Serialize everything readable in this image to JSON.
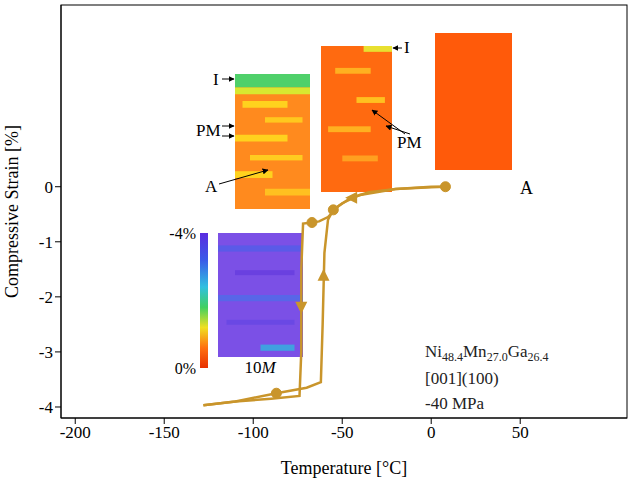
{
  "chart_data": {
    "type": "line",
    "x_label": "Temperature [°C]",
    "y_label": "Compressive Strain [%]",
    "xlim": [
      -208,
      110
    ],
    "xticks": [
      -200,
      -150,
      -100,
      -50,
      0,
      50
    ],
    "ylim": [
      -4.2,
      3.3
    ],
    "yticks": [
      -4,
      -3,
      -2,
      -1,
      0
    ],
    "color": "#c9952b",
    "series": [
      {
        "x": [
          8,
          0,
          -20,
          -35,
          -45,
          -52,
          -58,
          -63,
          -67,
          -72,
          -73,
          -73,
          -74,
          -90,
          -110,
          -128
        ],
        "values": [
          0,
          -0.01,
          -0.04,
          -0.1,
          -0.2,
          -0.35,
          -0.55,
          -0.63,
          -0.65,
          -0.67,
          -1.5,
          -3,
          -3.8,
          -3.85,
          -3.9,
          -3.97
        ]
      },
      {
        "x": [
          -128,
          -110,
          -87,
          -70,
          -62,
          -61,
          -60,
          -58,
          -55,
          -50,
          -40,
          -20,
          0,
          8
        ],
        "values": [
          -3.97,
          -3.9,
          -3.75,
          -3.65,
          -3.55,
          -2.5,
          -1.2,
          -0.6,
          -0.42,
          -0.3,
          -0.15,
          -0.04,
          0,
          0
        ]
      }
    ],
    "points": {
      "x": [
        8,
        -55,
        -67,
        -87
      ],
      "values": [
        0,
        -0.42,
        -0.65,
        -3.75
      ],
      "marker": "circle"
    },
    "arrows": [
      {
        "x": -73,
        "y": -2.2,
        "direction": "down"
      },
      {
        "x": -60.5,
        "y": -1.6,
        "direction": "up"
      },
      {
        "x": -45,
        "y": -0.2,
        "direction": "left"
      }
    ],
    "annotations": [
      "Ni48.4Mn27.0Ga26.4",
      "[001](100)",
      "-40 MPa"
    ],
    "insets": [
      {
        "labels": [
          "I",
          "PM",
          "A"
        ]
      },
      {
        "labels": [
          "I",
          "PM"
        ]
      },
      {
        "labels": [
          "A"
        ]
      },
      {
        "labels": [
          "10M"
        ],
        "colorbar": {
          "range": [
            -4,
            0
          ],
          "ticks": [
            {
              "value": -4,
              "label": "-4%"
            },
            {
              "value": 0,
              "label": "0%"
            }
          ]
        }
      }
    ]
  }
}
